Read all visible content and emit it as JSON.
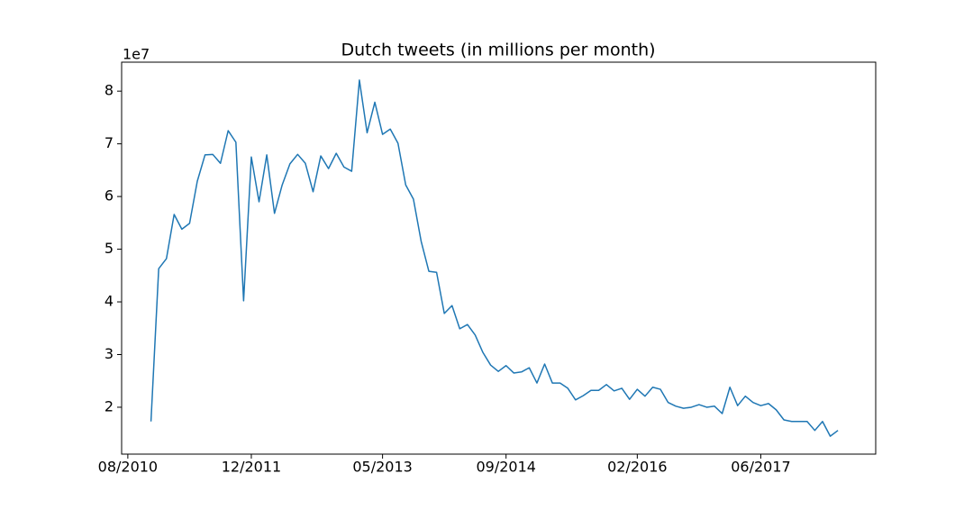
{
  "chart_data": {
    "type": "line",
    "title": "Dutch tweets (in millions per month)",
    "y_offset_label": "1e7",
    "x": [
      "2010-11",
      "2010-12",
      "2011-01",
      "2011-02",
      "2011-03",
      "2011-04",
      "2011-05",
      "2011-06",
      "2011-07",
      "2011-08",
      "2011-09",
      "2011-10",
      "2011-11",
      "2011-12",
      "2012-01",
      "2012-02",
      "2012-03",
      "2012-04",
      "2012-05",
      "2012-06",
      "2012-07",
      "2012-08",
      "2012-09",
      "2012-10",
      "2012-11",
      "2012-12",
      "2013-01",
      "2013-02",
      "2013-03",
      "2013-04",
      "2013-05",
      "2013-06",
      "2013-07",
      "2013-08",
      "2013-09",
      "2013-10",
      "2013-11",
      "2013-12",
      "2014-01",
      "2014-02",
      "2014-03",
      "2014-04",
      "2014-05",
      "2014-06",
      "2014-07",
      "2014-08",
      "2014-09",
      "2014-10",
      "2014-11",
      "2014-12",
      "2015-01",
      "2015-02",
      "2015-03",
      "2015-04",
      "2015-05",
      "2015-06",
      "2015-07",
      "2015-08",
      "2015-09",
      "2015-10",
      "2015-11",
      "2015-12",
      "2016-01",
      "2016-02",
      "2016-03",
      "2016-04",
      "2016-05",
      "2016-06",
      "2016-07",
      "2016-08",
      "2016-09",
      "2016-10",
      "2016-11",
      "2016-12",
      "2017-01",
      "2017-02",
      "2017-03",
      "2017-04",
      "2017-05",
      "2017-06",
      "2017-07",
      "2017-08",
      "2017-09",
      "2017-10",
      "2017-11",
      "2017-12",
      "2018-01",
      "2018-02",
      "2018-03",
      "2018-04"
    ],
    "series": [
      {
        "color": "#1f77b4",
        "values": [
          1.73,
          4.63,
          4.82,
          5.66,
          5.38,
          5.49,
          6.29,
          6.79,
          6.8,
          6.63,
          7.25,
          7.03,
          4.02,
          6.75,
          5.9,
          6.79,
          5.68,
          6.22,
          6.62,
          6.8,
          6.63,
          6.09,
          6.77,
          6.53,
          6.82,
          6.56,
          6.48,
          8.21,
          7.21,
          7.79,
          7.18,
          7.28,
          7.01,
          6.22,
          5.95,
          5.15,
          4.58,
          4.56,
          3.78,
          3.93,
          3.49,
          3.57,
          3.37,
          3.04,
          2.8,
          2.68,
          2.79,
          2.65,
          2.67,
          2.75,
          2.46,
          2.82,
          2.46,
          2.46,
          2.36,
          2.14,
          2.22,
          2.32,
          2.32,
          2.43,
          2.31,
          2.36,
          2.15,
          2.34,
          2.21,
          2.38,
          2.34,
          2.09,
          2.02,
          1.98,
          2.0,
          2.05,
          2.0,
          2.02,
          1.88,
          2.38,
          2.03,
          2.21,
          2.09,
          2.03,
          2.07,
          1.95,
          1.76,
          1.73,
          1.73,
          1.73,
          1.56,
          1.73,
          1.45,
          1.56
        ]
      }
    ],
    "xlim": [
      "2010-07-07",
      "2018-08-28"
    ],
    "xticks": [
      {
        "value": "2010-08",
        "label": "08/2010"
      },
      {
        "value": "2011-12",
        "label": "12/2011"
      },
      {
        "value": "2013-05",
        "label": "05/2013"
      },
      {
        "value": "2014-09",
        "label": "09/2014"
      },
      {
        "value": "2016-02",
        "label": "02/2016"
      },
      {
        "value": "2017-06",
        "label": "06/2017"
      }
    ],
    "ylim": [
      1.11,
      8.55
    ],
    "yticks": [
      2,
      3,
      4,
      5,
      6,
      7,
      8
    ]
  }
}
